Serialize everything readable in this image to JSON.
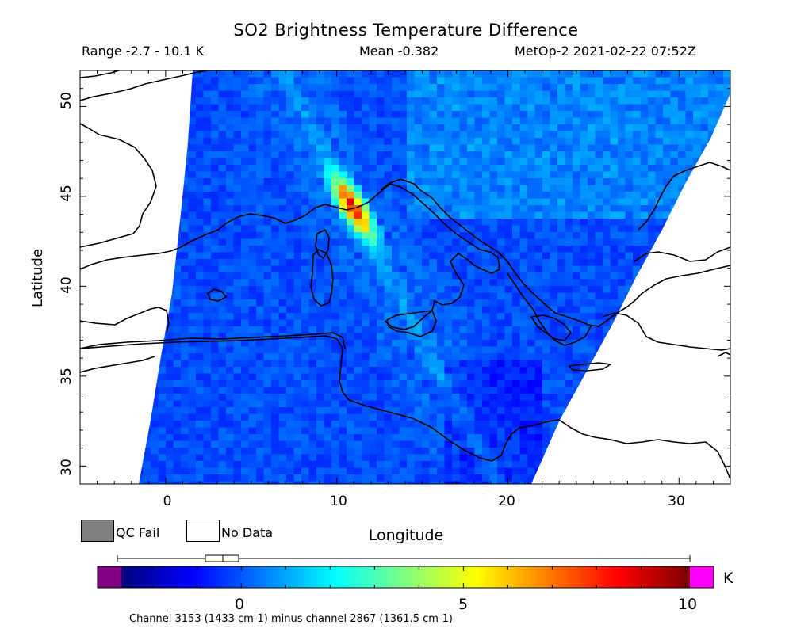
{
  "header": {
    "title": "SO2 Brightness Temperature Difference",
    "range": "Range -2.7 - 10.1 K",
    "mean": "Mean -0.382",
    "satellite_time": "MetOp-2 2021-02-22 07:52Z"
  },
  "map": {
    "lon_range": [
      -5,
      33
    ],
    "lat_range": [
      29,
      52
    ],
    "x_ticks": [
      "0",
      "10",
      "20",
      "30"
    ],
    "y_ticks": [
      "30",
      "35",
      "40",
      "45",
      "50"
    ],
    "x_label": "Longitude",
    "y_label": "Latitude",
    "plume": {
      "peak_value_k": 10.1,
      "peak_lon": 10.7,
      "peak_lat": 44.6
    }
  },
  "legend": {
    "qc_fail": "QC Fail",
    "no_data": "No Data",
    "qc_color": "#7f7f7f",
    "no_data_color": "#ffffff"
  },
  "colorbar": {
    "min": -2.7,
    "max": 10.1,
    "ticks": [
      "0",
      "5",
      "10"
    ],
    "unit": "K",
    "under_color": "#800080",
    "over_color": "#ff00ff",
    "colormap": "jet"
  },
  "footnote": "Channel 3153 (1433 cm-1) minus channel 2867 (1361.5 cm-1)"
}
